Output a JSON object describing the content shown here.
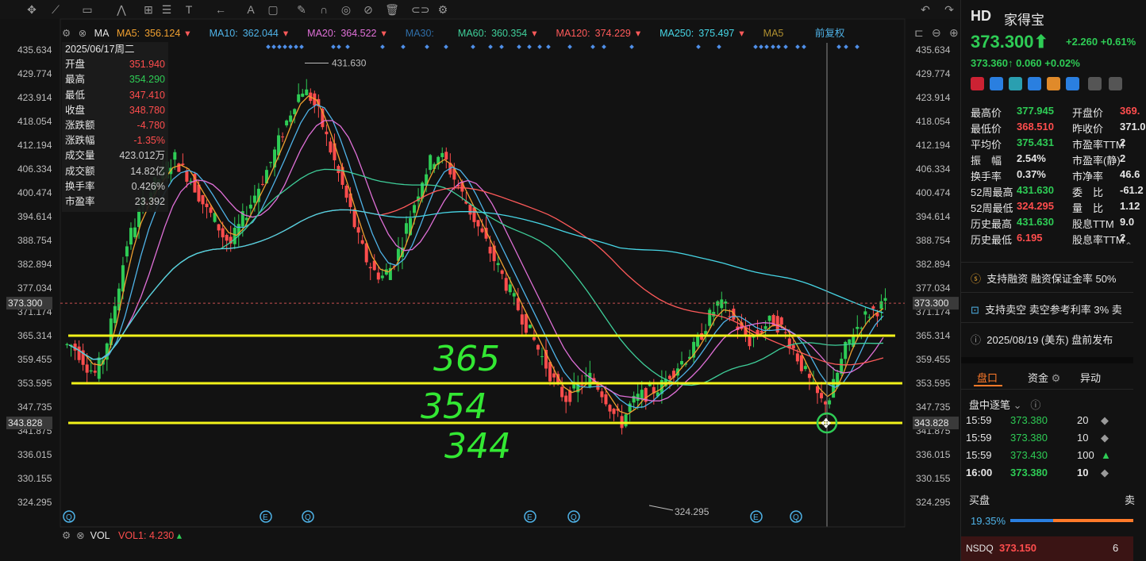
{
  "toolbar": {
    "icons": [
      "move-crosshair-icon",
      "trendline-icon",
      "rect-icon",
      "pattern-icon",
      "measure-icon",
      "fib-icon",
      "arrow-icon",
      "text-icon",
      "note-icon",
      "brush-icon",
      "magnet-icon",
      "eye-icon",
      "hide-icon",
      "trash-icon",
      "link-icon",
      "settings-icon"
    ]
  },
  "ma_bar": {
    "type_label": "MA",
    "items": [
      {
        "label": "MA5:",
        "value": "356.124",
        "color": "#f0a030"
      },
      {
        "label": "MA10:",
        "value": "362.044",
        "color": "#4fb3e8"
      },
      {
        "label": "MA20:",
        "value": "364.522",
        "color": "#e070d8"
      },
      {
        "label": "MA30:",
        "value": "",
        "color": "#2f6ea8"
      },
      {
        "label": "MA60:",
        "value": "360.354",
        "color": "#3fcf9a"
      },
      {
        "label": "MA120:",
        "value": "374.229",
        "color": "#ff5a5a"
      },
      {
        "label": "MA250:",
        "value": "375.497",
        "color": "#47d6e6"
      },
      {
        "label": "MA5",
        "value": "",
        "color": "#b09030"
      }
    ],
    "adjust_label": "前复权"
  },
  "info_box": {
    "date": "2025/06/17周二",
    "rows": [
      {
        "k": "开盘",
        "v": "351.940",
        "c": "red"
      },
      {
        "k": "最高",
        "v": "354.290",
        "c": "green"
      },
      {
        "k": "最低",
        "v": "347.410",
        "c": "red"
      },
      {
        "k": "收盘",
        "v": "348.780",
        "c": "red"
      },
      {
        "k": "涨跌额",
        "v": "-4.780",
        "c": "red"
      },
      {
        "k": "涨跌幅",
        "v": "-1.35%",
        "c": "red"
      },
      {
        "k": "成交量",
        "v": "423.012万",
        "c": "white"
      },
      {
        "k": "成交额",
        "v": "14.82亿",
        "c": "white"
      },
      {
        "k": "换手率",
        "v": "0.426%",
        "c": "white"
      },
      {
        "k": "市盈率",
        "v": "23.392",
        "c": "white"
      }
    ]
  },
  "price_axis": {
    "labels": [
      "435.634",
      "429.774",
      "423.914",
      "418.054",
      "412.194",
      "406.334",
      "400.474",
      "394.614",
      "388.754",
      "382.894",
      "377.034",
      "371.174",
      "365.314",
      "359.455",
      "353.595",
      "347.735",
      "341.875",
      "336.015",
      "330.155",
      "324.295"
    ],
    "current_price": "373.300",
    "cursor_price": "343.828"
  },
  "chart_data": {
    "type": "candlestick",
    "ylim": [
      321.0,
      438.0
    ],
    "high_label": "431.630",
    "low_label": "324.295",
    "annotations": [
      {
        "text": "365",
        "price": 365.314
      },
      {
        "text": "354",
        "price": 353.595
      },
      {
        "text": "344",
        "price": 343.828
      }
    ],
    "horizontal_lines": [
      365.314,
      353.595,
      343.828
    ],
    "current_price": 373.3,
    "series_close": [
      363,
      361,
      358,
      356,
      360,
      368,
      378,
      388,
      393,
      398,
      401,
      404,
      407,
      409,
      406,
      404,
      400,
      396,
      394,
      390,
      388,
      392,
      396,
      400,
      404,
      408,
      413,
      418,
      423,
      426,
      424,
      420,
      414,
      408,
      402,
      396,
      389,
      384,
      381,
      380,
      382,
      386,
      392,
      398,
      404,
      408,
      410,
      408,
      404,
      400,
      396,
      392,
      388,
      384,
      380,
      376,
      372,
      368,
      364,
      360,
      356,
      352,
      350,
      352,
      354,
      355,
      353,
      350,
      346,
      344,
      348,
      350,
      351,
      352,
      353,
      356,
      358,
      360,
      362,
      366,
      370,
      373,
      372,
      369,
      366,
      364,
      366,
      368,
      369,
      367,
      364,
      360,
      356,
      352,
      349,
      350,
      356,
      362,
      366,
      369,
      371,
      372,
      373
    ]
  },
  "vol_bar": {
    "label": "VOL",
    "vol1_label": "VOL1:",
    "vol1_value": "4.230"
  },
  "sidebar": {
    "ticker": "HD",
    "name": "家得宝",
    "price": "373.300",
    "change": "+2.260",
    "change_pct": "+0.61%",
    "after_price": "373.360",
    "after_change": "0.060",
    "after_pct": "+0.02%",
    "stats_left": [
      {
        "k": "最高价",
        "v": "377.945",
        "c": "green"
      },
      {
        "k": "最低价",
        "v": "368.510",
        "c": "red"
      },
      {
        "k": "平均价",
        "v": "375.431",
        "c": "green"
      },
      {
        "k": "振　幅",
        "v": "2.54%",
        "c": "white"
      },
      {
        "k": "换手率",
        "v": "0.37%",
        "c": "white"
      },
      {
        "k": "52周最高",
        "v": "431.630",
        "c": "green"
      },
      {
        "k": "52周最低",
        "v": "324.295",
        "c": "red"
      },
      {
        "k": "历史最高",
        "v": "431.630",
        "c": "green"
      },
      {
        "k": "历史最低",
        "v": "6.195",
        "c": "red"
      }
    ],
    "stats_right": [
      {
        "k": "开盘价",
        "v": "369.",
        "c": "red"
      },
      {
        "k": "昨收价",
        "v": "371.0",
        "c": "white"
      },
      {
        "k": "市盈率TTM",
        "v": "2",
        "c": "white"
      },
      {
        "k": "市盈率(静)",
        "v": "2",
        "c": "white"
      },
      {
        "k": "市净率",
        "v": "46.6",
        "c": "white"
      },
      {
        "k": "委　比",
        "v": "-61.2",
        "c": "white"
      },
      {
        "k": "量　比",
        "v": "1.12",
        "c": "white"
      },
      {
        "k": "股息TTM",
        "v": "9.0",
        "c": "white"
      },
      {
        "k": "股息率TTM",
        "v": "2",
        "c": "white"
      }
    ],
    "margin_text": "支持融资 融资保证金率 50%",
    "short_text": "支持卖空 卖空参考利率 3% 卖",
    "event_text": "2025/08/19 (美东)  盘前发布",
    "tabs": [
      "盘口",
      "资金",
      "异动"
    ],
    "ticks_title": "盘中逐笔",
    "ticks": [
      {
        "time": "15:59",
        "price": "373.380",
        "qty": "20",
        "dir": "◆"
      },
      {
        "time": "15:59",
        "price": "373.380",
        "qty": "10",
        "dir": "◆"
      },
      {
        "time": "15:59",
        "price": "373.430",
        "qty": "100",
        "dir": "▲"
      },
      {
        "time": "16:00",
        "price": "373.380",
        "qty": "10",
        "dir": "◆"
      }
    ],
    "bid_label": "买盘",
    "bid_pct": "19.35%",
    "nsdq_label": "NSDQ",
    "nsdq_price": "373.150",
    "nsdq_qty": "6"
  }
}
